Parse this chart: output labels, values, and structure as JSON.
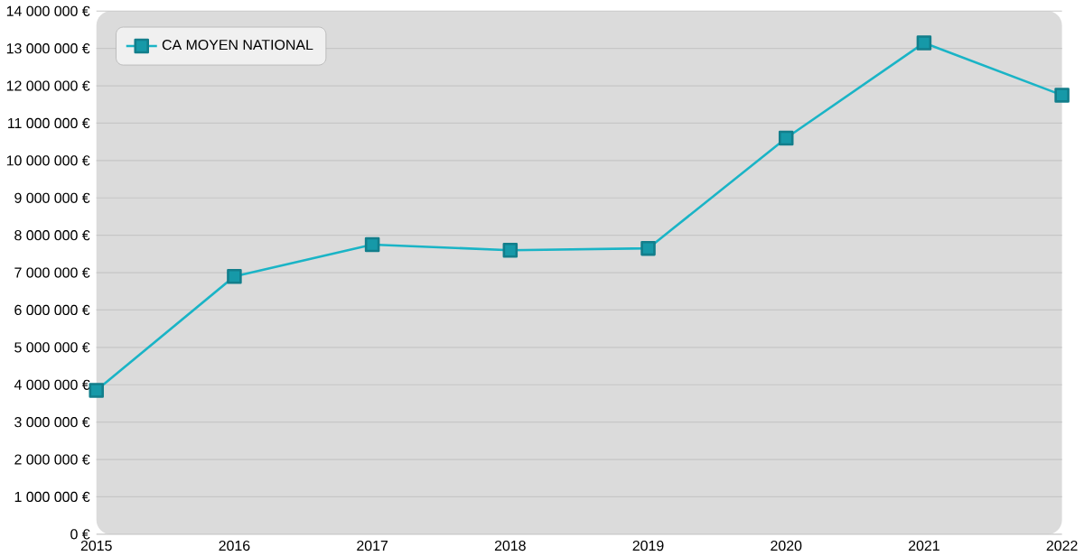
{
  "chart_data": {
    "type": "line",
    "categories": [
      "2015",
      "2016",
      "2017",
      "2018",
      "2019",
      "2020",
      "2021",
      "2022"
    ],
    "series": [
      {
        "name": "CA MOYEN NATIONAL",
        "color": "#1ab4c6",
        "values": [
          3850000,
          6900000,
          7750000,
          7600000,
          7650000,
          10600000,
          13150000,
          11750000
        ]
      }
    ],
    "ylim": [
      0,
      14000000
    ],
    "yticks": [
      {
        "value": 0,
        "label": "0 €"
      },
      {
        "value": 1000000,
        "label": "1 000 000 €"
      },
      {
        "value": 2000000,
        "label": "2 000 000 €"
      },
      {
        "value": 3000000,
        "label": "3 000 000 €"
      },
      {
        "value": 4000000,
        "label": "4 000 000 €"
      },
      {
        "value": 5000000,
        "label": "5 000 000 €"
      },
      {
        "value": 6000000,
        "label": "6 000 000 €"
      },
      {
        "value": 7000000,
        "label": "7 000 000 €"
      },
      {
        "value": 8000000,
        "label": "8 000 000 €"
      },
      {
        "value": 9000000,
        "label": "9 000 000 €"
      },
      {
        "value": 10000000,
        "label": "10 000 000 €"
      },
      {
        "value": 11000000,
        "label": "11 000 000 €"
      },
      {
        "value": 12000000,
        "label": "12 000 000 €"
      },
      {
        "value": 13000000,
        "label": "13 000 000 €"
      },
      {
        "value": 14000000,
        "label": "14 000 000 €"
      }
    ],
    "grid": "y",
    "legend": "top left",
    "marker": "square",
    "line_style": "solid"
  }
}
